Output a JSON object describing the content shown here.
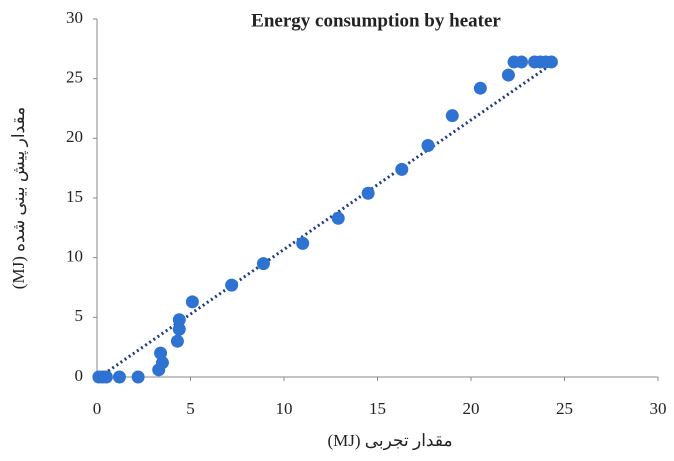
{
  "chart_data": {
    "type": "scatter",
    "title": "Energy consumption by heater",
    "x_label": "(MJ) مقدار تجربی",
    "y_label": "(MJ) مقدار پیش بینی شده",
    "color": "#2e72d2",
    "trend_color": "#1f3c88",
    "x": [
      0.1,
      0.3,
      0.5,
      1.2,
      2.2,
      3.3,
      3.5,
      3.4,
      4.3,
      4.4,
      4.4,
      5.1,
      7.2,
      8.9,
      11,
      12.9,
      14.5,
      16.3,
      17.7,
      19,
      20.5,
      22,
      22.3,
      22.7,
      23.4,
      23.7,
      24,
      24.3
    ],
    "values": [
      0,
      0,
      0,
      0,
      0,
      0.6,
      1.2,
      2,
      3,
      4,
      4.8,
      6.3,
      7.7,
      9.5,
      11.2,
      13.3,
      15.4,
      17.4,
      19.4,
      21.9,
      24.2,
      25.3,
      26.4,
      26.4,
      26.4,
      26.4,
      26.4,
      26.4
    ],
    "trendline": {
      "x": [
        0.6,
        24.3
      ],
      "y": [
        0.5,
        26.2
      ]
    },
    "xlim": [
      0,
      30
    ],
    "ylim": [
      0,
      30
    ],
    "xticks": [
      0,
      5,
      10,
      15,
      20,
      25,
      30
    ],
    "yticks": [
      0,
      5,
      10,
      15,
      20,
      25,
      30
    ]
  }
}
